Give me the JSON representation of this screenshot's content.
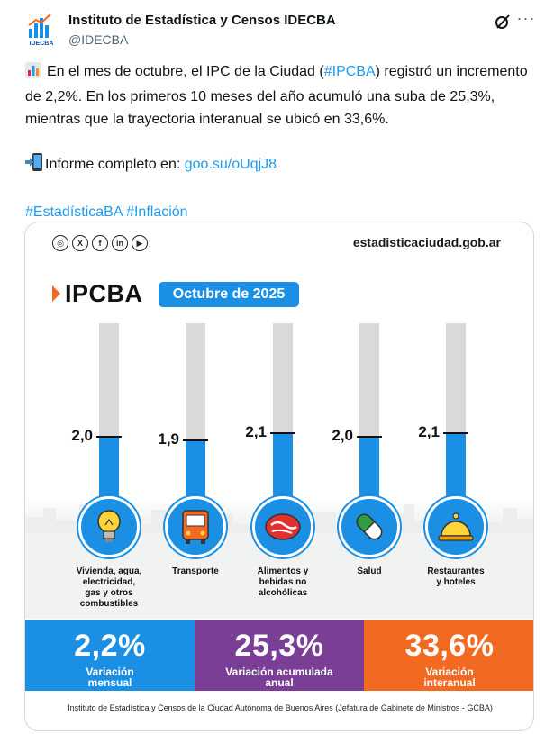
{
  "author": {
    "name": "Instituto de Estadística y Censos IDECBA",
    "handle": "@IDECBA",
    "avatar_text": "IDECBA"
  },
  "icons": {
    "grok": "grok-icon",
    "more": "more-icon",
    "chart_emoji": "bar-chart-emoji",
    "phone_emoji": "mobile-arrow-emoji"
  },
  "tweet": {
    "line1_before": "En el mes de octubre, el IPC de la Ciudad (",
    "line1_link": "#IPCBA",
    "line1_after": ") registró un incremento de 2,2%. En los primeros 10 meses del año acumuló una suba de 25,3%, mientras que la trayectoria interanual se ubicó en 33,6%.",
    "report_label": "Informe completo en: ",
    "report_link": "goo.su/oUqjJ8",
    "hashtag1": "#EstadísticaBA",
    "hashtag2": "#Inflación"
  },
  "infographic": {
    "social": [
      "instagram-icon",
      "x-icon",
      "facebook-icon",
      "linkedin-icon",
      "youtube-icon"
    ],
    "site": "estadisticaciudad.gob.ar",
    "title": "IPCBA",
    "month": "Octubre de 2025",
    "footer": "Instituto de Estadística y Censos de la Ciudad Autónoma de Buenos Aires (Jefatura de Gabinete de Ministros - GCBA)",
    "indicators": [
      {
        "value": "2,2%",
        "label1": "Variación",
        "label2": "mensual",
        "color": "#1a8fe3"
      },
      {
        "value": "25,3%",
        "label1": "Variación acumulada",
        "label2": "anual",
        "color": "#7a3e97"
      },
      {
        "value": "33,6%",
        "label1": "Variación",
        "label2": "interanual",
        "color": "#f26a21"
      }
    ]
  },
  "chart_data": {
    "type": "bar",
    "categories": [
      "Vivienda, agua, electricidad, gas y otros combustibles",
      "Transporte",
      "Alimentos y bebidas no alcohólicas",
      "Salud",
      "Restaurantes y hoteles"
    ],
    "category_lines": [
      [
        "Vivienda, agua,",
        "electricidad,",
        "gas y otros",
        "combustibles"
      ],
      [
        "Transporte"
      ],
      [
        "Alimentos y",
        "bebidas no",
        "alcohólicas"
      ],
      [
        "Salud"
      ],
      [
        "Restaurantes",
        "y hoteles"
      ]
    ],
    "values": [
      2.0,
      1.9,
      2.1,
      2.0,
      2.1
    ],
    "value_labels": [
      "2,0",
      "1,9",
      "2,1",
      "2,0",
      "2,1"
    ],
    "category_icons": [
      "lightbulb-icon",
      "bus-icon",
      "meat-icon",
      "pill-icon",
      "cloche-icon"
    ],
    "ylim": [
      0,
      5.5
    ],
    "bar_color": "#1a8fe3",
    "track_color": "#d9d9d9"
  }
}
